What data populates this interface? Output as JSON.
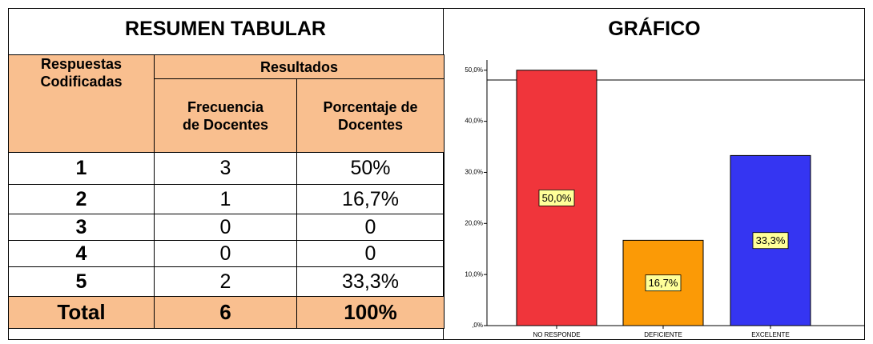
{
  "header": {
    "left_title": "RESUMEN TABULAR",
    "right_title": "GRÁFICO"
  },
  "table": {
    "head": [
      "Respuestas Codificadas",
      "Resultados",
      "Frecuencia de Docentes",
      "Porcentaje de Docentes"
    ],
    "rows": [
      [
        "1",
        "3",
        "50%"
      ],
      [
        "2",
        "1",
        "16,7%"
      ],
      [
        "3",
        "0",
        "0"
      ],
      [
        "4",
        "0",
        "0"
      ],
      [
        "5",
        "2",
        "33,3%"
      ]
    ],
    "total": [
      "Total",
      "6",
      "100%"
    ]
  },
  "chart_data": {
    "type": "bar",
    "categories": [
      "NO RESPONDE",
      "DEFICIENTE",
      "EXCELENTE"
    ],
    "values": [
      50,
      16.7,
      33.3
    ],
    "value_labels": [
      "50,0%",
      "16,7%",
      "33,3%"
    ],
    "colors": [
      "#f0353b",
      "#fb9a06",
      "#3535f2"
    ],
    "ylim": [
      0,
      52
    ],
    "yticks": [
      {
        "value": 0,
        "label": ",0%"
      },
      {
        "value": 10,
        "label": "10,0%"
      },
      {
        "value": 20,
        "label": "20,0%"
      },
      {
        "value": 30,
        "label": "30,0%"
      },
      {
        "value": 40,
        "label": "40,0%"
      },
      {
        "value": 50,
        "label": "50,0%"
      }
    ]
  }
}
